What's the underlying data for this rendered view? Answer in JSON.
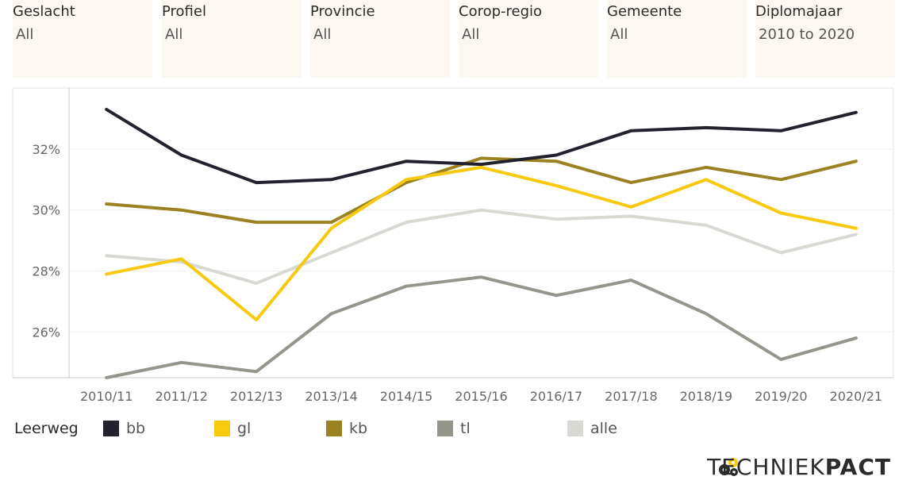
{
  "filters": [
    {
      "label": "Geslacht",
      "value": "All"
    },
    {
      "label": "Profiel",
      "value": "All"
    },
    {
      "label": "Provincie",
      "value": "All"
    },
    {
      "label": "Corop-regio",
      "value": "All"
    },
    {
      "label": "Gemeente",
      "value": "All"
    },
    {
      "label": "Diplomajaar",
      "value": "2010 to 2020"
    }
  ],
  "legend": {
    "title": "Leerweg"
  },
  "logo": {
    "text_thin": "TECHNIEK",
    "text_bold": "PACT"
  },
  "chart_data": {
    "type": "line",
    "categories": [
      "2010/11",
      "2011/12",
      "2012/13",
      "2013/14",
      "2014/15",
      "2015/16",
      "2016/17",
      "2017/18",
      "2018/19",
      "2019/20",
      "2020/21"
    ],
    "ylim": [
      24.5,
      34.0
    ],
    "yticks": [
      26,
      28,
      30,
      32
    ],
    "ytick_labels": [
      "26%",
      "28%",
      "30%",
      "32%"
    ],
    "grid": true,
    "legend_position": "bottom",
    "series": [
      {
        "name": "bb",
        "color": "#22222e",
        "values": [
          33.3,
          31.8,
          30.9,
          31.0,
          31.6,
          31.5,
          31.8,
          32.6,
          32.7,
          32.6,
          33.2
        ]
      },
      {
        "name": "gl",
        "color": "#f7c90f",
        "values": [
          27.9,
          28.4,
          26.4,
          29.4,
          31.0,
          31.4,
          30.8,
          30.1,
          31.0,
          29.9,
          29.4
        ]
      },
      {
        "name": "kb",
        "color": "#9a8222",
        "values": [
          30.2,
          30.0,
          29.6,
          29.6,
          30.9,
          31.7,
          31.6,
          30.9,
          31.4,
          31.0,
          31.6
        ]
      },
      {
        "name": "tl",
        "color": "#95958c",
        "values": [
          24.5,
          25.0,
          24.7,
          26.6,
          27.5,
          27.8,
          27.2,
          27.7,
          26.6,
          25.1,
          25.8
        ]
      },
      {
        "name": "alle",
        "color": "#d9d9d3",
        "values": [
          28.5,
          28.3,
          27.6,
          28.6,
          29.6,
          30.0,
          29.7,
          29.8,
          29.5,
          28.6,
          29.2
        ]
      }
    ]
  }
}
